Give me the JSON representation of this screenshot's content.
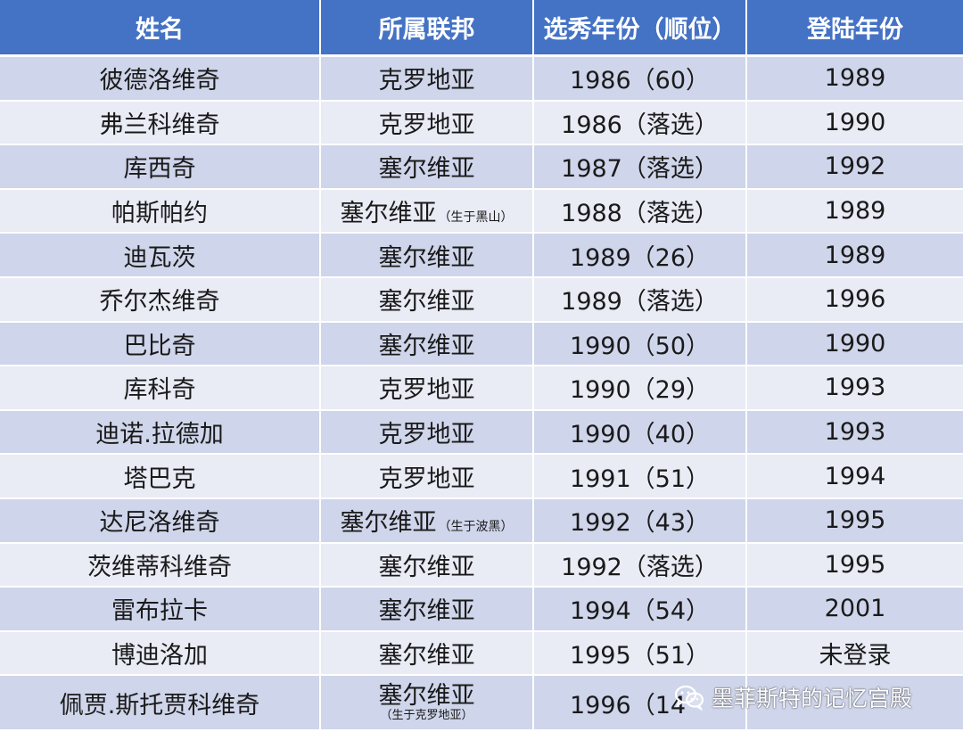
{
  "headers": [
    "姓名",
    "所属联邦",
    "选秀年份（顺位）",
    "登陆年份"
  ],
  "rows": [
    {
      "name": "彼德洛维奇",
      "federation": "克罗地亚",
      "note": "",
      "draft": "1986（60）",
      "arrival": "1989"
    },
    {
      "name": "弗兰科维奇",
      "federation": "克罗地亚",
      "note": "",
      "draft": "1986（落选）",
      "arrival": "1990"
    },
    {
      "name": "库西奇",
      "federation": "塞尔维亚",
      "note": "",
      "draft": "1987（落选）",
      "arrival": "1992"
    },
    {
      "name": "帕斯帕约",
      "federation": "塞尔维亚",
      "note": "（生于黑山）",
      "draft": "1988（落选）",
      "arrival": "1989"
    },
    {
      "name": "迪瓦茨",
      "federation": "塞尔维亚",
      "note": "",
      "draft": "1989（26）",
      "arrival": "1989"
    },
    {
      "name": "乔尔杰维奇",
      "federation": "塞尔维亚",
      "note": "",
      "draft": "1989（落选）",
      "arrival": "1996"
    },
    {
      "name": "巴比奇",
      "federation": "塞尔维亚",
      "note": "",
      "draft": "1990（50）",
      "arrival": "1990"
    },
    {
      "name": "库科奇",
      "federation": "克罗地亚",
      "note": "",
      "draft": "1990（29）",
      "arrival": "1993"
    },
    {
      "name": "迪诺.拉德加",
      "federation": "克罗地亚",
      "note": "",
      "draft": "1990（40）",
      "arrival": "1993"
    },
    {
      "name": "塔巴克",
      "federation": "克罗地亚",
      "note": "",
      "draft": "1991（51）",
      "arrival": "1994"
    },
    {
      "name": "达尼洛维奇",
      "federation": "塞尔维亚",
      "note": "（生于波黑）",
      "draft": "1992（43）",
      "arrival": "1995"
    },
    {
      "name": "茨维蒂科维奇",
      "federation": "塞尔维亚",
      "note": "",
      "draft": "1992（落选）",
      "arrival": "1995"
    },
    {
      "name": "雷布拉卡",
      "federation": "塞尔维亚",
      "note": "",
      "draft": "1994（54）",
      "arrival": "2001"
    },
    {
      "name": "博迪洛加",
      "federation": "塞尔维亚",
      "note": "",
      "draft": "1995（51）",
      "arrival": "未登录"
    },
    {
      "name": "佩贾.斯托贾科维奇",
      "federation": "塞尔维亚",
      "note_below": "（生于克罗地亚）",
      "draft": "1996（14",
      "arrival": ""
    }
  ],
  "watermark": {
    "text": "墨菲斯特的记忆宫殿",
    "icon": "wechat-icon",
    "color": "#ffffff"
  },
  "colors": {
    "header_bg": "#4472c4",
    "row_odd": "#cfd5ea",
    "row_even": "#e9ebf5"
  }
}
